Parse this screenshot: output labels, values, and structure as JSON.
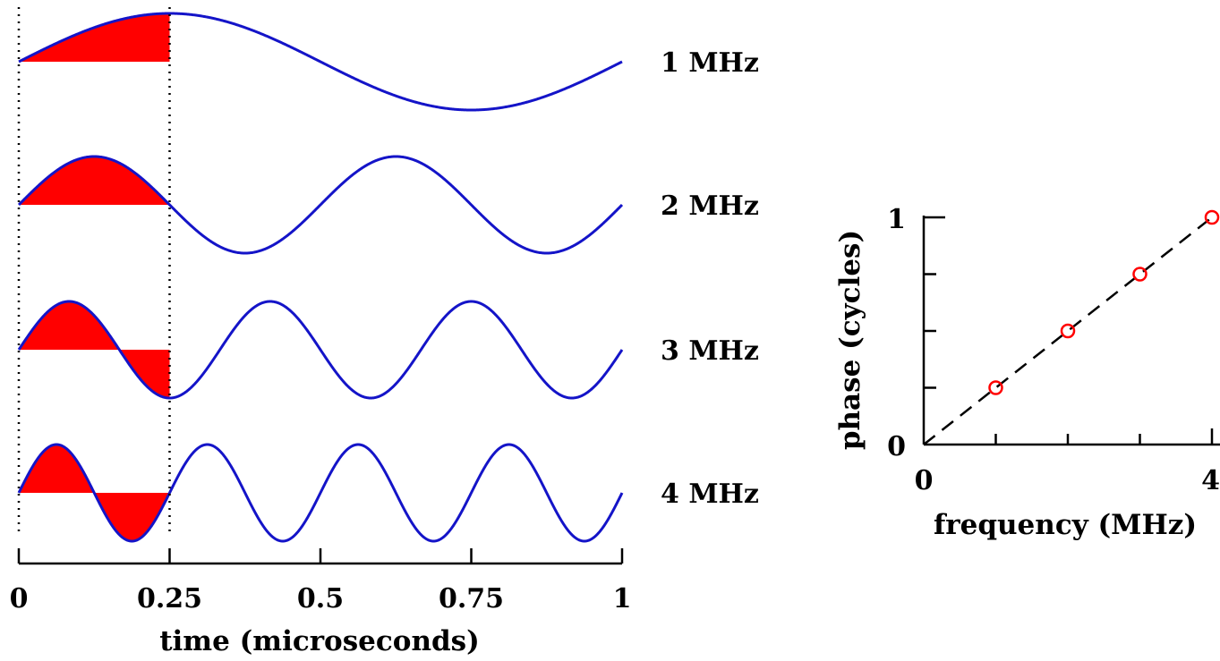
{
  "colors": {
    "wave": "#1414c8",
    "fill": "#ff0000",
    "marker": "#ff0000",
    "axis": "#000000",
    "fit_line": "#000000"
  },
  "chart_data": [
    {
      "type": "line",
      "xlabel": "time (microseconds)",
      "xlim": [
        0,
        1
      ],
      "x_ticks": [
        0,
        0.25,
        0.5,
        0.75,
        1
      ],
      "x_tick_labels": [
        "0",
        "0.25",
        "0.5",
        "0.75",
        "1"
      ],
      "shaded_interval": [
        0,
        0.25
      ],
      "grid": false,
      "series": [
        {
          "name": "1 MHz",
          "frequency": 1
        },
        {
          "name": "2 MHz",
          "frequency": 2
        },
        {
          "name": "3 MHz",
          "frequency": 3
        },
        {
          "name": "4 MHz",
          "frequency": 4
        }
      ]
    },
    {
      "type": "scatter",
      "xlabel": "frequency (MHz)",
      "ylabel": "phase (cycles)",
      "xlim": [
        0,
        4
      ],
      "ylim": [
        0,
        1
      ],
      "x_tick_labels": [
        "0",
        "4"
      ],
      "y_tick_labels": [
        "0",
        "1"
      ],
      "y_minor_ticks": [
        0.25,
        0.5,
        0.75
      ],
      "points": [
        {
          "x": 1,
          "y": 0.25
        },
        {
          "x": 2,
          "y": 0.5
        },
        {
          "x": 3,
          "y": 0.75
        },
        {
          "x": 4,
          "y": 1.0
        }
      ],
      "fit_line": {
        "x": [
          0,
          4
        ],
        "y": [
          0,
          1
        ],
        "style": "dashed"
      },
      "grid": false
    }
  ]
}
